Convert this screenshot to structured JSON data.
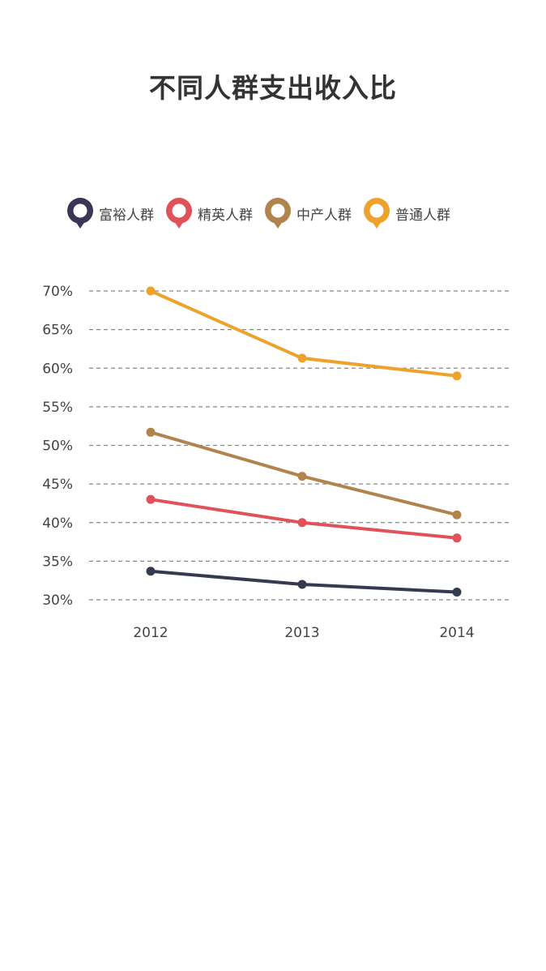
{
  "chart_data": {
    "type": "line",
    "title": "不同人群支出收入比",
    "categories": [
      "2012",
      "2013",
      "2014"
    ],
    "xlabel": "",
    "ylabel": "",
    "ylim": [
      30,
      70
    ],
    "yticks": [
      "70%",
      "65%",
      "60%",
      "55%",
      "50%",
      "45%",
      "40%",
      "35%",
      "30%"
    ],
    "ytick_values": [
      70,
      65,
      60,
      55,
      50,
      45,
      40,
      35,
      30
    ],
    "grid": "dashed horizontal",
    "legend_position": "top",
    "series": [
      {
        "name": "富裕人群",
        "color": "#353a4f",
        "values": [
          33.7,
          32.0,
          31.0
        ]
      },
      {
        "name": "精英人群",
        "color": "#e0525a",
        "values": [
          43.0,
          40.0,
          38.0
        ]
      },
      {
        "name": "中产人群",
        "color": "#b0844c",
        "values": [
          51.7,
          46.0,
          41.0
        ]
      },
      {
        "name": "普通人群",
        "color": "#eda22b",
        "values": [
          70.0,
          61.3,
          59.0
        ]
      }
    ]
  },
  "legend_colors": {
    "富裕人群": "#3a3656",
    "精英人群": "#e0525a",
    "中产人群": "#b0844c",
    "普通人群": "#eda22b"
  }
}
